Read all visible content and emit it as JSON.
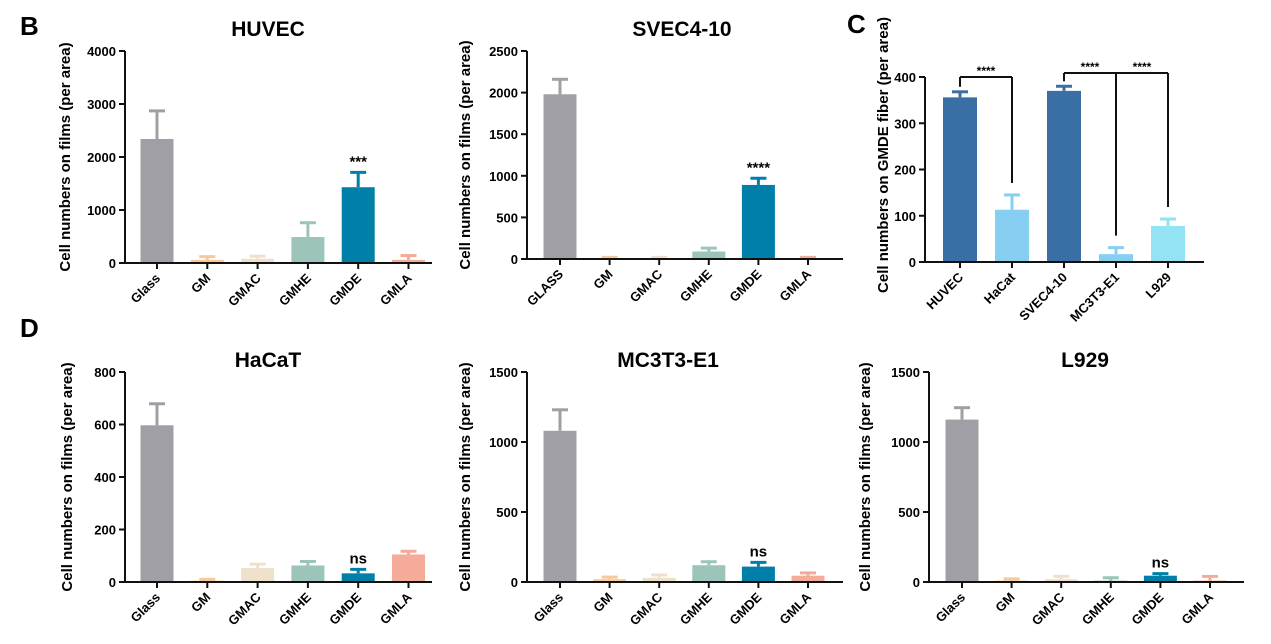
{
  "figure": {
    "panel_letters": [
      "B",
      "C",
      "D"
    ]
  },
  "chart_data": [
    {
      "id": "huvec",
      "panel": "B",
      "type": "bar",
      "title": "HUVEC",
      "xlabel": "",
      "ylabel": "Cell numbers on films (per area)",
      "ylim": [
        0,
        4000
      ],
      "yticks": [
        0,
        1000,
        2000,
        3000,
        4000
      ],
      "grid": false,
      "categories": [
        "Glass",
        "GM",
        "GMAC",
        "GMHE",
        "GMDE",
        "GMLA"
      ],
      "values": [
        2340,
        60,
        80,
        490,
        1430,
        60
      ],
      "errors": [
        530,
        60,
        50,
        270,
        280,
        80
      ],
      "colors": [
        "#a09fa5",
        "#f5c99a",
        "#efe0cc",
        "#9cc4bb",
        "#007fa8",
        "#f4ab9a"
      ],
      "annotations": [
        {
          "category": "GMDE",
          "text": "***"
        }
      ]
    },
    {
      "id": "svec",
      "panel": "B",
      "type": "bar",
      "title": "SVEC4-10",
      "xlabel": "",
      "ylabel": "Cell numbers on films (per area)",
      "ylim": [
        0,
        2500
      ],
      "yticks": [
        0,
        500,
        1000,
        1500,
        2000,
        2500
      ],
      "grid": false,
      "categories": [
        "GLASS",
        "GM",
        "GMAC",
        "GMHE",
        "GMDE",
        "GMLA"
      ],
      "values": [
        1980,
        10,
        10,
        90,
        890,
        10
      ],
      "errors": [
        180,
        10,
        10,
        40,
        80,
        10
      ],
      "colors": [
        "#a09fa5",
        "#f5c99a",
        "#efe0cc",
        "#9cc4bb",
        "#007fa8",
        "#f4ab9a"
      ],
      "annotations": [
        {
          "category": "GMDE",
          "text": "****"
        }
      ]
    },
    {
      "id": "gmde-fiber",
      "panel": "C",
      "type": "bar",
      "title": "",
      "xlabel": "",
      "ylabel": "Cell numbers on GMDE fiber (per area)",
      "ylim": [
        0,
        400
      ],
      "yticks": [
        0,
        100,
        200,
        300,
        400
      ],
      "grid": false,
      "categories": [
        "HUVEC",
        "HaCat",
        "SVEC4-10",
        "MC3T3-E1",
        "L929"
      ],
      "values": [
        356,
        113,
        370,
        17,
        78
      ],
      "errors": [
        12,
        32,
        10,
        14,
        15
      ],
      "colors": [
        "#3a6fa6",
        "#86cff3",
        "#3a6fa6",
        "#86cff3",
        "#93e3f5"
      ],
      "brackets": [
        {
          "from": "HUVEC",
          "to": [
            "HaCat"
          ],
          "text": "****"
        },
        {
          "from": "SVEC4-10",
          "to": [
            "MC3T3-E1",
            "L929"
          ],
          "text": [
            "****",
            "****"
          ]
        }
      ]
    },
    {
      "id": "hacat",
      "panel": "D",
      "type": "bar",
      "title": "HaCaT",
      "xlabel": "",
      "ylabel": "Cell numbers on films (per area)",
      "ylim": [
        0,
        800
      ],
      "yticks": [
        0,
        200,
        400,
        600,
        800
      ],
      "grid": false,
      "categories": [
        "Glass",
        "GM",
        "GMAC",
        "GMHE",
        "GMDE",
        "GMLA"
      ],
      "values": [
        597,
        5,
        53,
        63,
        33,
        105
      ],
      "errors": [
        82,
        5,
        15,
        15,
        15,
        12
      ],
      "colors": [
        "#a09fa5",
        "#f5c99a",
        "#efe0cc",
        "#9cc4bb",
        "#007fa8",
        "#f4ab9a"
      ],
      "annotations": [
        {
          "category": "GMDE",
          "text": "ns"
        }
      ]
    },
    {
      "id": "mc3t3",
      "panel": "D",
      "type": "bar",
      "title": "MC3T3-E1",
      "xlabel": "",
      "ylabel": "Cell numbers on films (per area)",
      "ylim": [
        0,
        1500
      ],
      "yticks": [
        0,
        500,
        1000,
        1500
      ],
      "grid": false,
      "categories": [
        "Glass",
        "GM",
        "GMAC",
        "GMHE",
        "GMDE",
        "GMLA"
      ],
      "values": [
        1080,
        20,
        30,
        120,
        110,
        45
      ],
      "errors": [
        150,
        15,
        20,
        25,
        30,
        20
      ],
      "colors": [
        "#a09fa5",
        "#f5c99a",
        "#efe0cc",
        "#9cc4bb",
        "#007fa8",
        "#f4ab9a"
      ],
      "annotations": [
        {
          "category": "GMDE",
          "text": "ns"
        }
      ]
    },
    {
      "id": "l929",
      "panel": "D",
      "type": "bar",
      "title": "L929",
      "xlabel": "",
      "ylabel": "Cell numbers on films (per area)",
      "ylim": [
        0,
        1500
      ],
      "yticks": [
        0,
        500,
        1000,
        1500
      ],
      "grid": false,
      "categories": [
        "Glass",
        "GM",
        "GMAC",
        "GMHE",
        "GMDE",
        "GMLA"
      ],
      "values": [
        1160,
        10,
        20,
        10,
        45,
        10
      ],
      "errors": [
        85,
        12,
        20,
        20,
        15,
        30
      ],
      "colors": [
        "#a09fa5",
        "#f5c99a",
        "#efe0cc",
        "#9cc4bb",
        "#007fa8",
        "#f4ab9a"
      ],
      "annotations": [
        {
          "category": "GMDE",
          "text": "ns"
        }
      ]
    }
  ]
}
